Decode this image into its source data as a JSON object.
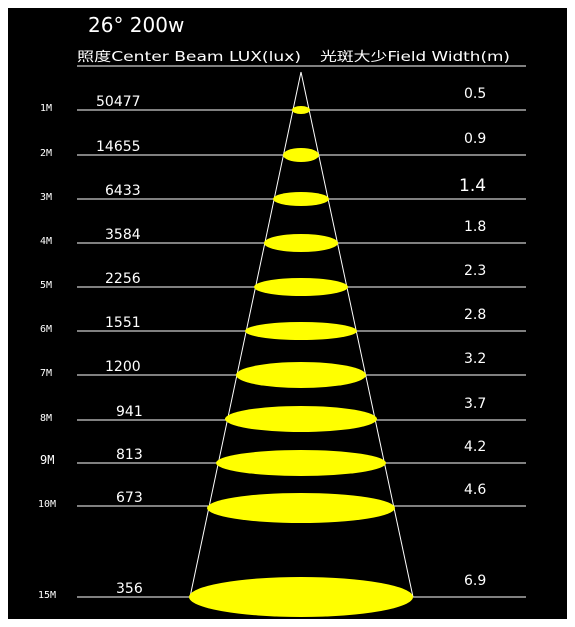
{
  "header": {
    "title": "26° 200w",
    "lux_header": "照度Center Beam LUX(lux)",
    "width_header": "光斑大少Field Width(m)"
  },
  "colors": {
    "background": "#000000",
    "beam_fill": "#ffff00",
    "lines": "#ffffff",
    "border": "#ffffff"
  },
  "rows": [
    {
      "distance": "1M",
      "lux": "50477",
      "width": "0.5"
    },
    {
      "distance": "2M",
      "lux": "14655",
      "width": "0.9"
    },
    {
      "distance": "3M",
      "lux": "6433",
      "width": "1.4"
    },
    {
      "distance": "4M",
      "lux": "3584",
      "width": "1.8"
    },
    {
      "distance": "5M",
      "lux": "2256",
      "width": "2.3"
    },
    {
      "distance": "6M",
      "lux": "1551",
      "width": "2.8"
    },
    {
      "distance": "7M",
      "lux": "1200",
      "width": "3.2"
    },
    {
      "distance": "8M",
      "lux": "941",
      "width": "3.7"
    },
    {
      "distance": "9M",
      "lux": "813",
      "width": "4.2"
    },
    {
      "distance": "10M",
      "lux": "673",
      "width": "4.6"
    },
    {
      "distance": "15M",
      "lux": "356",
      "width": "6.9"
    }
  ]
}
